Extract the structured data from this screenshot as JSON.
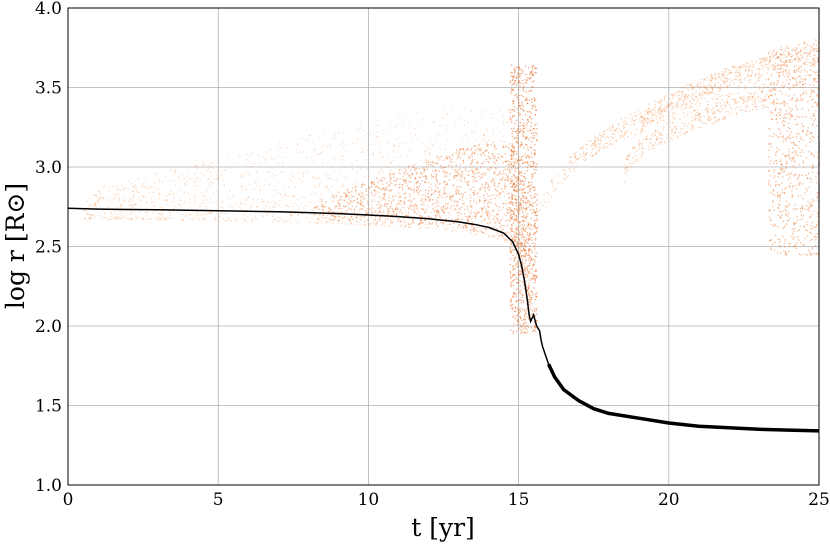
{
  "chart_data": {
    "type": "scatter",
    "xlabel": "t [yr]",
    "ylabel": "log r [R⊙]",
    "xlim": [
      0,
      25
    ],
    "ylim": [
      1.0,
      4.0
    ],
    "xticks": [
      0,
      5,
      10,
      15,
      20,
      25
    ],
    "xtick_labels": [
      "0",
      "5",
      "10",
      "15",
      "20",
      "25"
    ],
    "yticks": [
      1.0,
      1.5,
      2.0,
      2.5,
      3.0,
      3.5,
      4.0
    ],
    "ytick_labels": [
      "1.0",
      "1.5",
      "2.0",
      "2.5",
      "3.0",
      "3.5",
      "4.0"
    ],
    "grid": true,
    "colors": {
      "cloud": "#f07f2c",
      "cloud_dense": "#e8651a",
      "line": "#000000"
    },
    "series": [
      {
        "type": "line",
        "values": [
          [
            0.0,
            2.74
          ],
          [
            1.0,
            2.735
          ],
          [
            2.0,
            2.733
          ],
          [
            3.0,
            2.731
          ],
          [
            4.0,
            2.728
          ],
          [
            5.0,
            2.725
          ],
          [
            6.0,
            2.722
          ],
          [
            7.0,
            2.718
          ],
          [
            8.0,
            2.713
          ],
          [
            9.0,
            2.707
          ],
          [
            10.0,
            2.698
          ],
          [
            11.0,
            2.688
          ],
          [
            12.0,
            2.675
          ],
          [
            13.0,
            2.655
          ],
          [
            13.5,
            2.64
          ],
          [
            14.0,
            2.62
          ],
          [
            14.5,
            2.585
          ],
          [
            14.8,
            2.53
          ],
          [
            15.0,
            2.45
          ],
          [
            15.1,
            2.38
          ],
          [
            15.2,
            2.28
          ],
          [
            15.3,
            2.15
          ],
          [
            15.35,
            2.07
          ],
          [
            15.4,
            2.03
          ],
          [
            15.5,
            2.07
          ],
          [
            15.6,
            2.0
          ],
          [
            15.7,
            1.97
          ],
          [
            15.75,
            1.91
          ],
          [
            15.8,
            1.87
          ],
          [
            16.0,
            1.76
          ],
          [
            16.2,
            1.68
          ],
          [
            16.5,
            1.6
          ],
          [
            17.0,
            1.53
          ],
          [
            17.5,
            1.48
          ],
          [
            18.0,
            1.45
          ],
          [
            19.0,
            1.42
          ],
          [
            20.0,
            1.39
          ],
          [
            21.0,
            1.37
          ],
          [
            22.0,
            1.36
          ],
          [
            23.0,
            1.35
          ],
          [
            24.0,
            1.345
          ],
          [
            25.0,
            1.34
          ]
        ]
      }
    ]
  }
}
